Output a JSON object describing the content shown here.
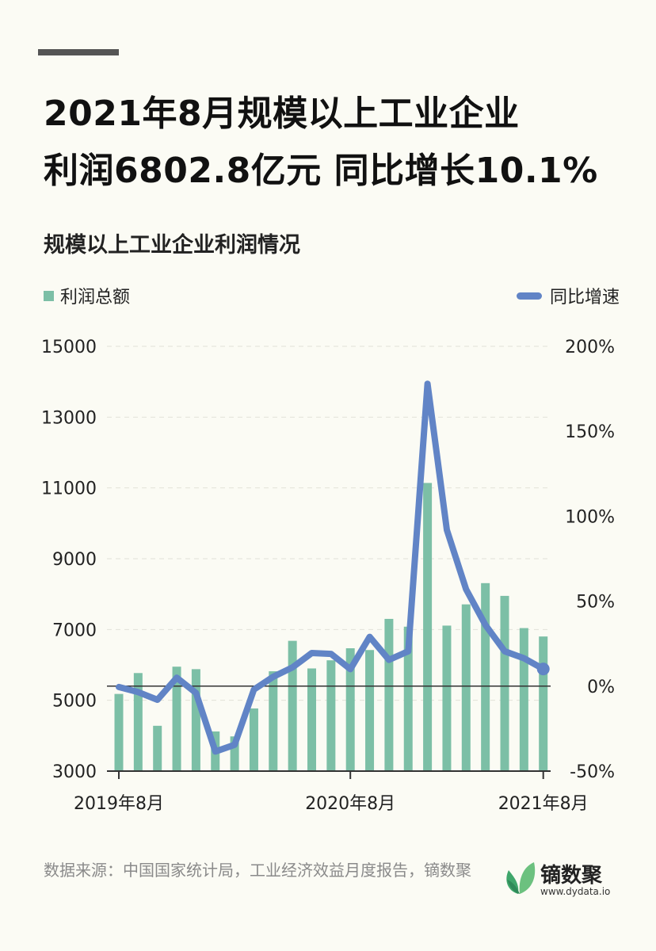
{
  "title_line1": "2021年8月规模以上工业企业",
  "title_line2": "利润6802.8亿元 同比增长10.1%",
  "subtitle": "规模以上工业企业利润情况",
  "legend": {
    "bar": "利润总额",
    "line": "同比增速"
  },
  "source": "数据来源：中国国家统计局，工业经济效益月度报告，镝数聚",
  "logo": {
    "name": "镝数聚",
    "url": "www.dydata.io"
  },
  "colors": {
    "bar": "#7cbfa6",
    "line": "#6184c6",
    "background": "#fbfbf4"
  },
  "chart_data": {
    "type": "bar+line",
    "x_tick_labels": [
      "2019年8月",
      "2020年8月",
      "2021年8月"
    ],
    "x_tick_months": [
      0,
      12,
      22
    ],
    "left_axis": {
      "ylim": [
        3000,
        15000
      ],
      "ticks": [
        "3000",
        "5000",
        "7000",
        "9000",
        "11000",
        "13000",
        "15000"
      ]
    },
    "right_axis": {
      "ylim": [
        -50,
        200
      ],
      "ticks": [
        "-50%",
        "0%",
        "50%",
        "100%",
        "150%",
        "200%"
      ]
    },
    "series": [
      {
        "name": "利润总额",
        "type": "bar",
        "axis": "left",
        "values": [
          5180,
          5770,
          4280,
          5950,
          5880,
          4120,
          3980,
          4770,
          5820,
          6680,
          5900,
          6130,
          6470,
          6420,
          7300,
          7080,
          11140,
          7110,
          7710,
          8310,
          7950,
          7040,
          6802.8
        ]
      },
      {
        "name": "同比增速",
        "type": "line",
        "axis": "right",
        "values": [
          -0.5,
          -3.5,
          -8,
          5,
          -4,
          -38.5,
          -34.5,
          -2,
          5.5,
          11,
          19.5,
          19,
          10,
          29,
          15.5,
          20.5,
          178,
          92,
          57,
          36,
          20.5,
          16.4,
          10.1
        ]
      }
    ]
  }
}
